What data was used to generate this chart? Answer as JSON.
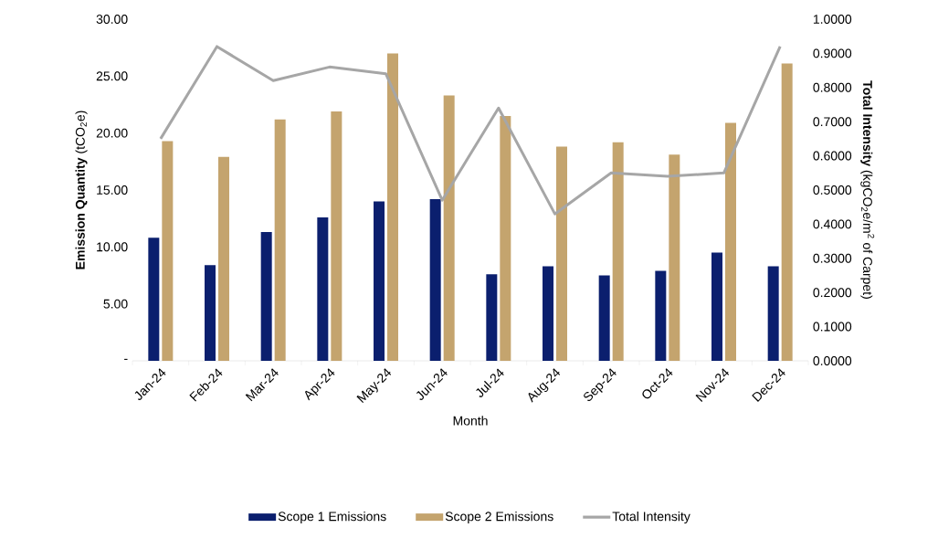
{
  "chart_data": {
    "type": "bar",
    "xlabel": "Month",
    "ylabel": "**Emission Quantity** (tCO$_{2}$e)",
    "y2label": "**Total Intensity** (kgCO$_{2}$e/m$^{2}$ of Carpet)",
    "categories": [
      "Jan-24",
      "Feb-24",
      "Mar-24",
      "Apr-24",
      "May-24",
      "Jun-24",
      "Jul-24",
      "Aug-24",
      "Sep-24",
      "Oct-24",
      "Nov-24",
      "Dec-24"
    ],
    "series": [
      {
        "name": "Scope 1 Emissions",
        "color": "#0b1f6e",
        "values": [
          10.8,
          8.4,
          11.3,
          12.6,
          14.0,
          14.2,
          7.6,
          8.3,
          7.5,
          7.9,
          9.5,
          8.3
        ]
      },
      {
        "name": "Scope 2 Emissions",
        "color": "#c4a46e",
        "values": [
          19.3,
          17.9,
          21.2,
          21.9,
          27.0,
          23.3,
          21.5,
          18.8,
          19.2,
          18.1,
          20.9,
          26.1
        ]
      },
      {
        "name": "Total Intensity",
        "type": "line",
        "axis": "y2",
        "color": "#a6a6a6",
        "values": [
          0.65,
          0.92,
          0.82,
          0.86,
          0.84,
          0.47,
          0.74,
          0.43,
          0.55,
          0.54,
          0.55,
          0.92
        ]
      }
    ],
    "ylim": [
      0,
      30
    ],
    "yticks": [
      {
        "value": 0,
        "label": "-"
      },
      {
        "value": 5,
        "label": "5.00"
      },
      {
        "value": 10,
        "label": "10.00"
      },
      {
        "value": 15,
        "label": "15.00"
      },
      {
        "value": 20,
        "label": "20.00"
      },
      {
        "value": 25,
        "label": "25.00"
      },
      {
        "value": 30,
        "label": "30.00"
      }
    ],
    "y2lim": [
      0,
      1
    ],
    "y2ticks": [
      {
        "value": 0,
        "label": "0.0000"
      },
      {
        "value": 0.1,
        "label": "0.1000"
      },
      {
        "value": 0.2,
        "label": "0.2000"
      },
      {
        "value": 0.3,
        "label": "0.3000"
      },
      {
        "value": 0.4,
        "label": "0.4000"
      },
      {
        "value": 0.5,
        "label": "0.5000"
      },
      {
        "value": 0.6,
        "label": "0.6000"
      },
      {
        "value": 0.7,
        "label": "0.7000"
      },
      {
        "value": 0.8,
        "label": "0.8000"
      },
      {
        "value": 0.9,
        "label": "0.9000"
      },
      {
        "value": 1,
        "label": "1.0000"
      }
    ],
    "legend": "bottom",
    "marker": "none"
  }
}
